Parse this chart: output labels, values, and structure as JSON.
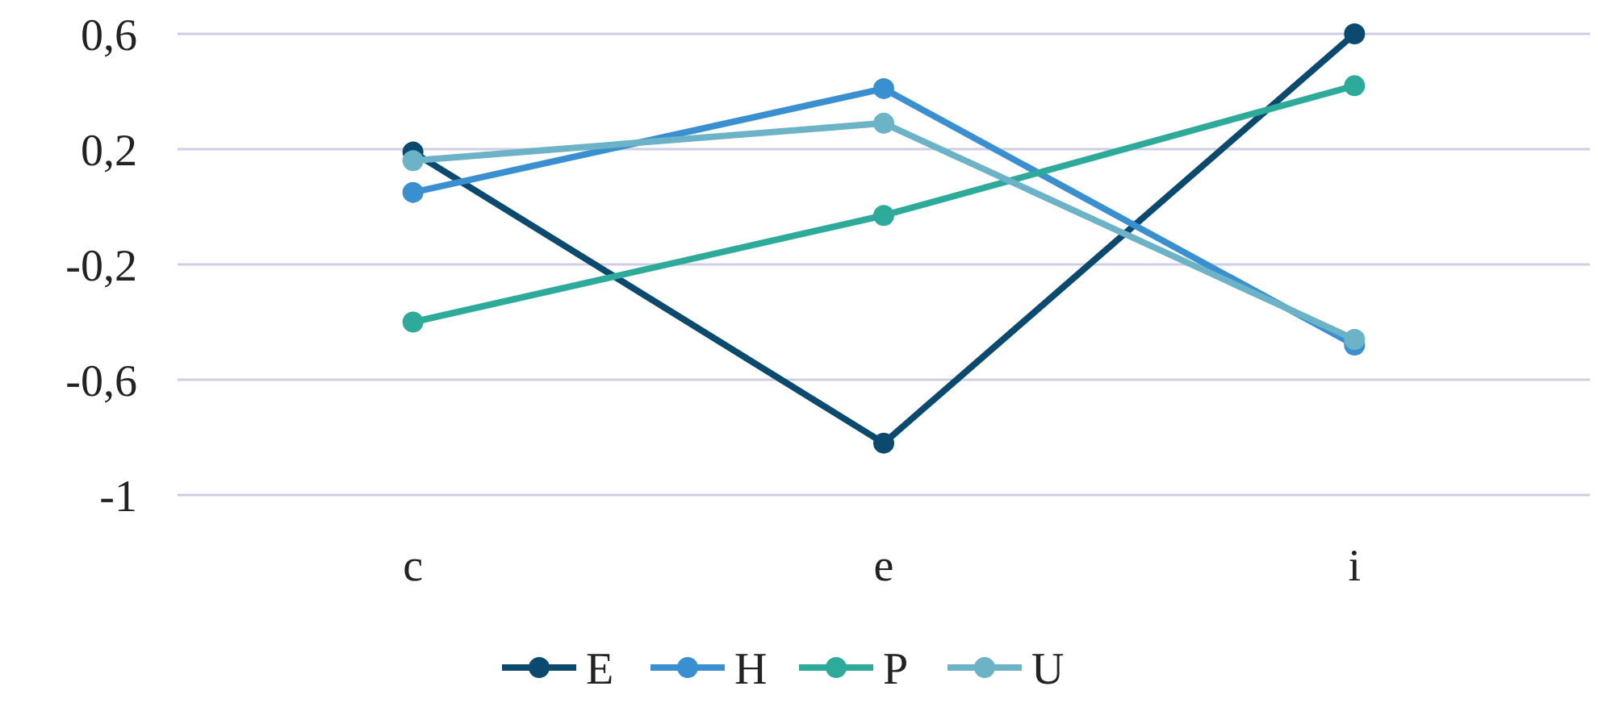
{
  "chart_data": {
    "type": "line",
    "categories": [
      "c",
      "e",
      "i"
    ],
    "series": [
      {
        "name": "E",
        "color": "#0b4a6e",
        "values": [
          0.19,
          -0.82,
          0.6
        ]
      },
      {
        "name": "H",
        "color": "#3a8fd1",
        "values": [
          0.05,
          0.41,
          -0.48
        ]
      },
      {
        "name": "P",
        "color": "#2eaa9a",
        "values": [
          -0.4,
          -0.03,
          0.42
        ]
      },
      {
        "name": "U",
        "color": "#6cb3c8",
        "values": [
          0.16,
          0.29,
          -0.46
        ]
      }
    ],
    "ylim": [
      -1,
      0.6
    ],
    "yticks": [
      {
        "value": 0.6,
        "label": "0,6"
      },
      {
        "value": 0.2,
        "label": "0,2"
      },
      {
        "value": -0.2,
        "label": "-0,2"
      },
      {
        "value": -0.6,
        "label": "-0,6"
      },
      -1
    ],
    "grid": "y",
    "legend": "bottom",
    "marker": "circle",
    "line_style": "solid"
  }
}
